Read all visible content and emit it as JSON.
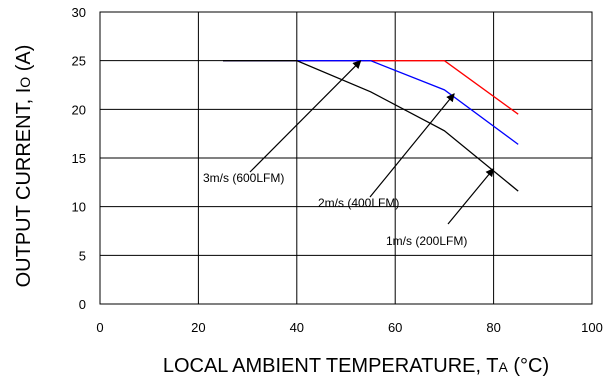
{
  "chart_data": {
    "type": "line",
    "xlabel": "LOCAL AMBIENT TEMPERATURE, T",
    "xlabel_subscript": "A",
    "xlabel_suffix": " (°C)",
    "ylabel": "OUTPUT CURRENT, I",
    "ylabel_subscript": "O",
    "ylabel_suffix": " (A)",
    "xlim": [
      0,
      100
    ],
    "ylim": [
      0,
      30
    ],
    "x_ticks": [
      "0",
      "20",
      "40",
      "60",
      "80",
      "100"
    ],
    "y_ticks": [
      "0",
      "5",
      "10",
      "15",
      "20",
      "25",
      "30"
    ],
    "grid": true,
    "series": [
      {
        "name": "3m/s (600LFM)",
        "color": "#ff0000",
        "x": [
          25,
          40,
          55,
          70,
          85
        ],
        "y": [
          25,
          25,
          25,
          25,
          19.5
        ]
      },
      {
        "name": "2m/s (400LFM)",
        "color": "#0000ff",
        "x": [
          25,
          40,
          55,
          70,
          85
        ],
        "y": [
          25,
          25,
          25,
          22,
          16.4
        ]
      },
      {
        "name": "1m/s (200LFM)",
        "color": "#000000",
        "x": [
          25,
          40,
          55,
          70,
          85
        ],
        "y": [
          25,
          25,
          21.8,
          17.8,
          11.6
        ]
      }
    ],
    "annotations": [
      {
        "text": "3m/s (600LFM)",
        "target": [
          53,
          25
        ]
      },
      {
        "text": "2m/s (400LFM)",
        "target": [
          72,
          21.6
        ]
      },
      {
        "text": "1m/s (200LFM)",
        "target": [
          80,
          13.9
        ]
      }
    ]
  }
}
